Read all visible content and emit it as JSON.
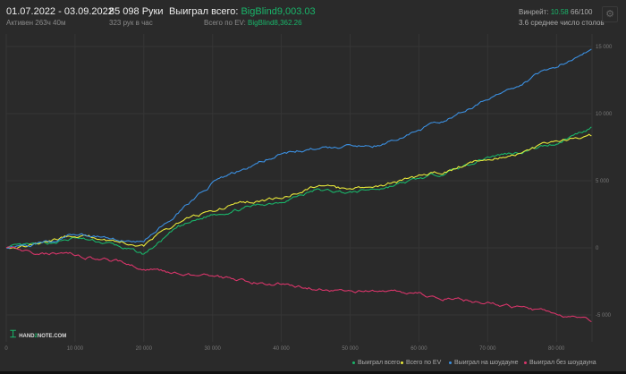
{
  "header": {
    "date_range": "01.07.2022 - 03.09.2022",
    "active": "Активен 263ч 40м",
    "hands": "85 098 Руки",
    "hands_per_hour": "323 рук в час",
    "won_label": "Выиграл всего:",
    "won_value": "BigBlind9,003.03",
    "ev_label": "Всего по EV:",
    "ev_value": "BigBlind8,362.26",
    "winrate_label": "Винрейт:",
    "winrate_value": "10.58",
    "winrate_suffix": "66/100",
    "tables": "3.6 среднее число столов",
    "settings_icon": "gear-icon"
  },
  "logo": {
    "text_a": "HAND",
    "text_b": "2",
    "text_c": "NOTE.COM"
  },
  "chart_data": {
    "type": "line",
    "x_ticks": [
      "0",
      "10 000",
      "20 000",
      "30 000",
      "40 000",
      "50 000",
      "60 000",
      "70 000",
      "80 000"
    ],
    "y_ticks": [
      "15 000",
      "10 000",
      "5 000",
      "0",
      "-5 000"
    ],
    "xlim": [
      0,
      85098
    ],
    "ylim": [
      -6000,
      16000
    ],
    "grid": true,
    "legend": "bottom-right",
    "x": [
      0,
      5000,
      10000,
      15000,
      20000,
      25000,
      30000,
      35000,
      40000,
      45000,
      50000,
      55000,
      60000,
      65000,
      70000,
      75000,
      80000,
      85098
    ],
    "series": [
      {
        "name": "Выиграл всего",
        "color": "#19b56a",
        "values": [
          0,
          200,
          700,
          300,
          -500,
          1500,
          2500,
          3000,
          3500,
          4300,
          4100,
          4500,
          5100,
          5800,
          6800,
          7200,
          7800,
          9003
        ]
      },
      {
        "name": "Всего по EV",
        "color": "#e8e83a",
        "values": [
          0,
          300,
          1000,
          600,
          200,
          1900,
          2800,
          3400,
          3700,
          4600,
          4300,
          4700,
          5300,
          5900,
          6700,
          7100,
          7900,
          8362
        ]
      },
      {
        "name": "Выиграл на шоудауне",
        "color": "#3b8fe0",
        "values": [
          0,
          400,
          1000,
          700,
          500,
          2600,
          4800,
          6000,
          7100,
          7400,
          7500,
          7700,
          8800,
          9800,
          11100,
          12300,
          13500,
          14800
        ]
      },
      {
        "name": "Выиграл без шоудауна",
        "color": "#d8356a",
        "values": [
          0,
          -400,
          -500,
          -900,
          -1500,
          -1900,
          -2200,
          -2500,
          -2700,
          -3000,
          -3200,
          -3300,
          -3500,
          -3800,
          -4100,
          -4500,
          -4900,
          -5500
        ]
      }
    ]
  }
}
